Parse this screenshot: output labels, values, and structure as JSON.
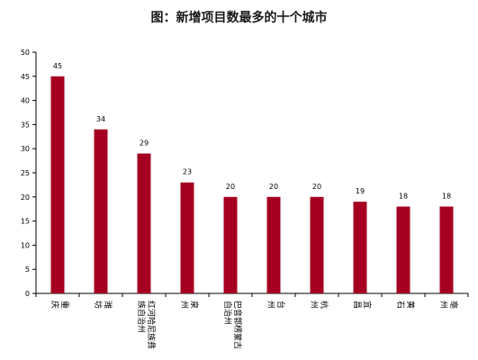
{
  "chart_data": {
    "type": "bar",
    "title": "图：新增项目数最多的十个城市",
    "categories": [
      "重庆",
      "潍坊",
      "红河哈尼族彝族自治州",
      "泉州",
      "巴音郭楞蒙古自治州",
      "台州",
      "杭州",
      "宜昌",
      "黄石",
      "亳州"
    ],
    "category_lines": [
      [
        "重",
        "庆"
      ],
      [
        "潍",
        "坊"
      ],
      [
        "红河哈尼族彝",
        "族自治州"
      ],
      [
        "泉",
        "州"
      ],
      [
        "巴音郭楞蒙古",
        "自治州"
      ],
      [
        "台",
        "州"
      ],
      [
        "杭",
        "州"
      ],
      [
        "宜",
        "昌"
      ],
      [
        "黄",
        "石"
      ],
      [
        "亳",
        "州"
      ]
    ],
    "values": [
      45,
      34,
      29,
      23,
      20,
      20,
      20,
      19,
      18,
      18
    ],
    "data_labels": [
      "45",
      "34",
      "29",
      "23",
      "20",
      "20",
      "20",
      "19",
      "18",
      "18"
    ],
    "yticks": [
      "0",
      "5",
      "10",
      "15",
      "20",
      "25",
      "30",
      "35",
      "40",
      "45",
      "50"
    ],
    "ylim": [
      0,
      50
    ],
    "xlabel": "",
    "ylabel": "",
    "grid": false,
    "bar_color": "#a50021"
  }
}
